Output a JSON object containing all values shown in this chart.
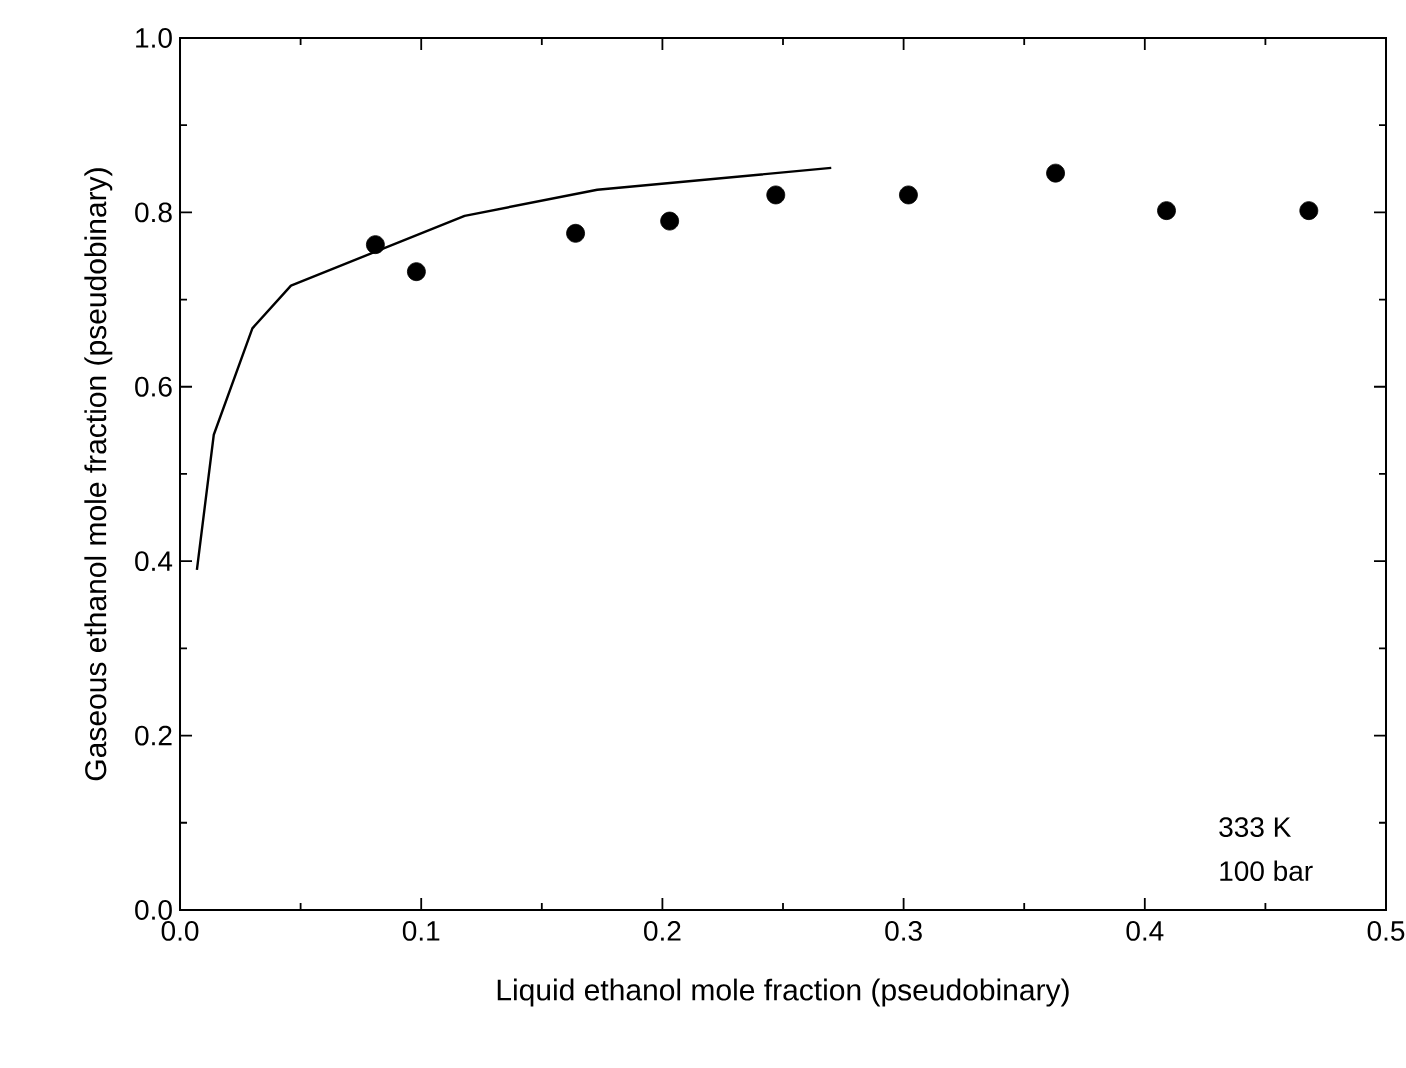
{
  "chart_data": {
    "type": "scatter",
    "xlabel": "Liquid ethanol mole fraction (pseudobinary)",
    "ylabel": "Gaseous ethanol mole fraction (pseudobinary)",
    "annotations": [
      "333 K",
      "100 bar"
    ],
    "xlim": [
      0,
      0.5
    ],
    "ylim": [
      0,
      1.0
    ],
    "xticks": [
      {
        "value": 0,
        "label": "0.0"
      },
      0.1,
      0.2,
      0.3,
      0.4,
      0.5
    ],
    "yticks": [
      {
        "value": 0,
        "label": "0.0"
      },
      0.2,
      0.4,
      0.6,
      0.8,
      {
        "value": 1.0,
        "label": "1.0"
      }
    ],
    "series": [
      {
        "type": "line",
        "color": "#000000",
        "marker": "none",
        "line_style": "solid",
        "x": [
          0.007,
          0.014,
          0.03,
          0.046,
          0.118,
          0.173,
          0.27
        ],
        "values": [
          0.39,
          0.545,
          0.667,
          0.716,
          0.796,
          0.826,
          0.851
        ]
      },
      {
        "color": "#000000",
        "marker": "circle",
        "x": [
          0.081,
          0.098,
          0.164,
          0.203,
          0.247,
          0.302,
          0.363,
          0.409,
          0.468
        ],
        "values": [
          0.763,
          0.732,
          0.776,
          0.79,
          0.82,
          0.82,
          0.845,
          0.802,
          0.802
        ]
      }
    ]
  }
}
